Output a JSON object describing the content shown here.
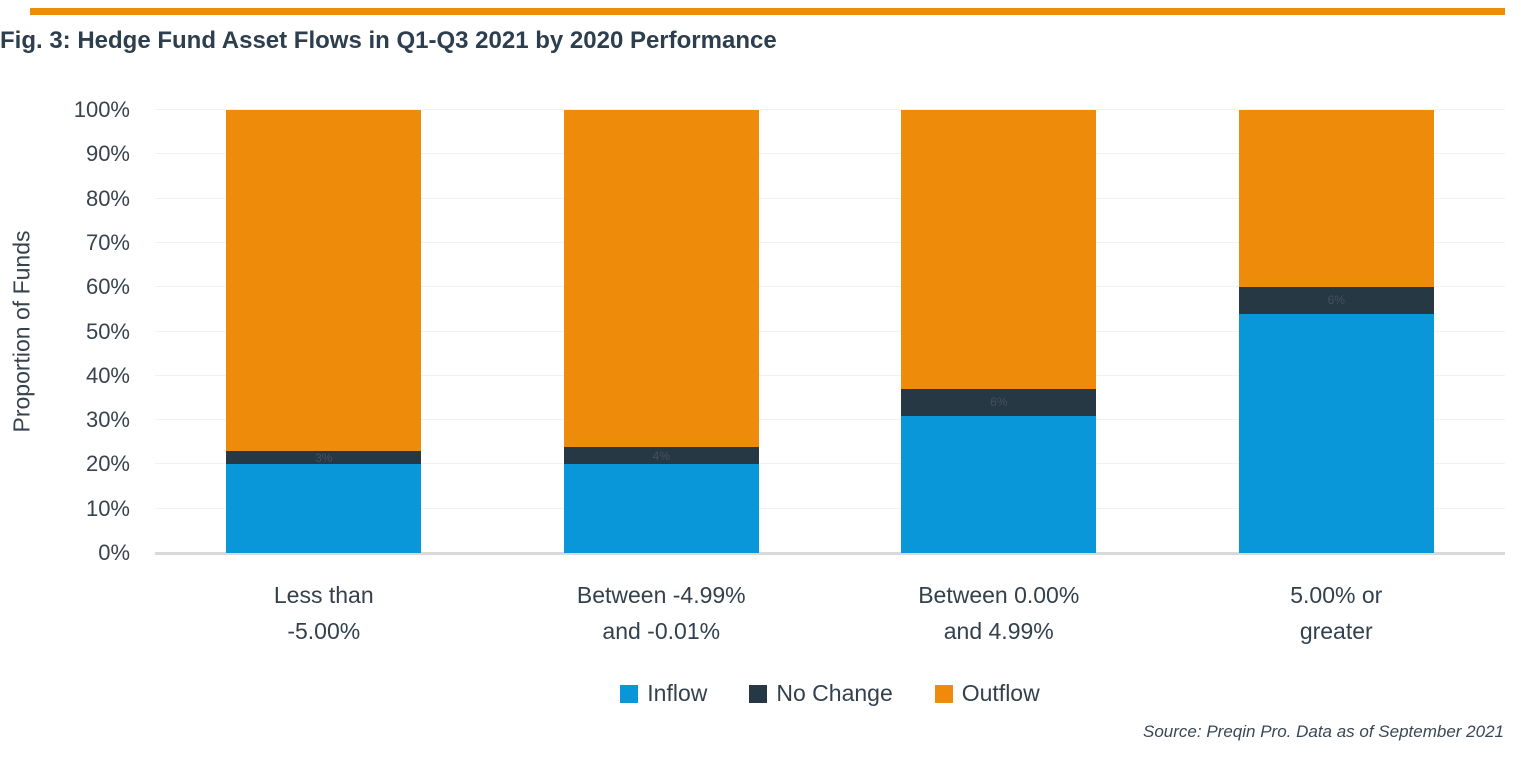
{
  "figure": {
    "title": "Fig. 3: Hedge Fund Asset Flows in Q1-Q3 2021 by 2020 Performance",
    "source_note": "Source: Preqin Pro. Data as of September 2021",
    "accent_bar_color": "#EE8B0B"
  },
  "chart_data": {
    "type": "bar",
    "stacked": true,
    "title": "Fig. 3: Hedge Fund Asset Flows in Q1-Q3 2021 by 2020 Performance",
    "xlabel": "",
    "ylabel": "Proportion of Funds",
    "ylim": [
      0,
      100
    ],
    "ytick_step": 10,
    "ytick_suffix": "%",
    "grid": "horizontal-faint",
    "legend_position": "bottom-center",
    "categories": [
      "Less than\n-5.00%",
      "Between -4.99%\nand -0.01%",
      "Between 0.00%\nand 4.99%",
      "5.00% or\ngreater"
    ],
    "series": [
      {
        "name": "Inflow",
        "color": "#0A97D9",
        "values": [
          20,
          20,
          31,
          54
        ],
        "labels": [
          "",
          "",
          "",
          ""
        ]
      },
      {
        "name": "No Change",
        "color": "#273845",
        "values": [
          3,
          4,
          6,
          6
        ],
        "labels": [
          "3%",
          "4%",
          "6%",
          "6%"
        ]
      },
      {
        "name": "Outflow",
        "color": "#EE8B0B",
        "values": [
          77,
          76,
          63,
          40
        ],
        "labels": [
          "",
          "",
          "",
          ""
        ]
      }
    ]
  }
}
